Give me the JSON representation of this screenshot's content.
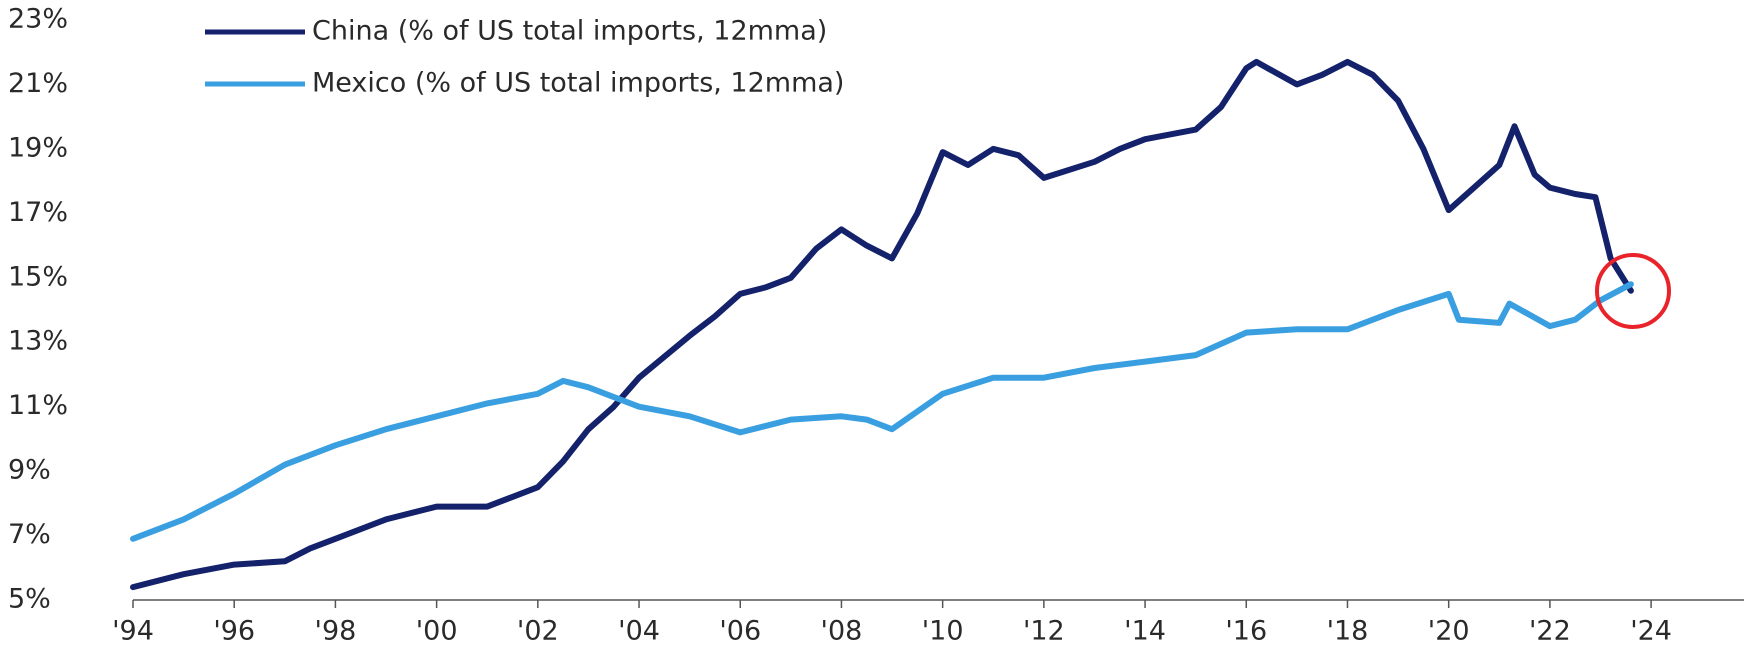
{
  "chart_data": {
    "type": "line",
    "series": [
      {
        "name": "China (% of US total imports, 12mma)",
        "color": "#14216b",
        "x": [
          1994,
          1995,
          1996,
          1997,
          1997.5,
          1998,
          1999,
          2000,
          2001,
          2001.5,
          2002,
          2002.5,
          2003,
          2003.5,
          2004,
          2005,
          2005.5,
          2006,
          2006.5,
          2007,
          2007.5,
          2008,
          2008.5,
          2009,
          2009.5,
          2010,
          2010.5,
          2011,
          2011.5,
          2012,
          2013,
          2013.5,
          2014,
          2015,
          2015.5,
          2016,
          2016.2,
          2017,
          2017.5,
          2018,
          2018.5,
          2019,
          2019.5,
          2020,
          2020.5,
          2021,
          2021.3,
          2021.7,
          2022,
          2022.5,
          2022.9,
          2023.2,
          2023.6
        ],
        "values": [
          5.4,
          5.8,
          6.1,
          6.2,
          6.6,
          6.9,
          7.5,
          7.9,
          7.9,
          8.2,
          8.5,
          9.3,
          10.3,
          11.0,
          11.9,
          13.2,
          13.8,
          14.5,
          14.7,
          15.0,
          15.9,
          16.5,
          16.0,
          15.6,
          17.0,
          18.9,
          18.5,
          19.0,
          18.8,
          18.1,
          18.6,
          19.0,
          19.3,
          19.6,
          20.3,
          21.5,
          21.7,
          21.0,
          21.3,
          21.7,
          21.3,
          20.5,
          19.0,
          17.1,
          17.8,
          18.5,
          19.7,
          18.2,
          17.8,
          17.6,
          17.5,
          15.6,
          14.6
        ]
      },
      {
        "name": "Mexico (% of US total imports, 12mma)",
        "color": "#3a9fe0",
        "x": [
          1994,
          1995,
          1996,
          1997,
          1998,
          1999,
          2000,
          2001,
          2002,
          2002.5,
          2003,
          2004,
          2005,
          2006,
          2007,
          2008,
          2008.5,
          2009,
          2010,
          2011,
          2012,
          2013,
          2014,
          2015,
          2016,
          2017,
          2018,
          2019,
          2020,
          2020.2,
          2021,
          2021.2,
          2022,
          2022.5,
          2023,
          2023.6
        ],
        "values": [
          6.9,
          7.5,
          8.3,
          9.2,
          9.8,
          10.3,
          10.7,
          11.1,
          11.4,
          11.8,
          11.6,
          11.0,
          10.7,
          10.2,
          10.6,
          10.7,
          10.6,
          10.3,
          11.4,
          11.9,
          11.9,
          12.2,
          12.4,
          12.6,
          13.3,
          13.4,
          13.4,
          14.0,
          14.5,
          13.7,
          13.6,
          14.2,
          13.5,
          13.7,
          14.3,
          14.8
        ]
      }
    ],
    "xlim": [
      1994,
      2025.5
    ],
    "xticks": [
      {
        "value": 1994,
        "label": "'94"
      },
      {
        "value": 1996,
        "label": "'96"
      },
      {
        "value": 1998,
        "label": "'98"
      },
      {
        "value": 2000,
        "label": "'00"
      },
      {
        "value": 2002,
        "label": "'02"
      },
      {
        "value": 2004,
        "label": "'04"
      },
      {
        "value": 2006,
        "label": "'06"
      },
      {
        "value": 2008,
        "label": "'08"
      },
      {
        "value": 2010,
        "label": "'10"
      },
      {
        "value": 2012,
        "label": "'12"
      },
      {
        "value": 2014,
        "label": "'14"
      },
      {
        "value": 2016,
        "label": "'16"
      },
      {
        "value": 2018,
        "label": "'18"
      },
      {
        "value": 2020,
        "label": "'20"
      },
      {
        "value": 2022,
        "label": "'22"
      },
      {
        "value": 2024,
        "label": "'24"
      }
    ],
    "ylim": [
      5,
      23
    ],
    "yticks": [
      {
        "value": 5,
        "label": "5%"
      },
      {
        "value": 7,
        "label": "7%"
      },
      {
        "value": 9,
        "label": "9%"
      },
      {
        "value": 11,
        "label": "11%"
      },
      {
        "value": 13,
        "label": "13%"
      },
      {
        "value": 15,
        "label": "15%"
      },
      {
        "value": 17,
        "label": "17%"
      },
      {
        "value": 19,
        "label": "19%"
      },
      {
        "value": 21,
        "label": "21%"
      },
      {
        "value": 23,
        "label": "23%"
      }
    ],
    "grid": false
  }
}
